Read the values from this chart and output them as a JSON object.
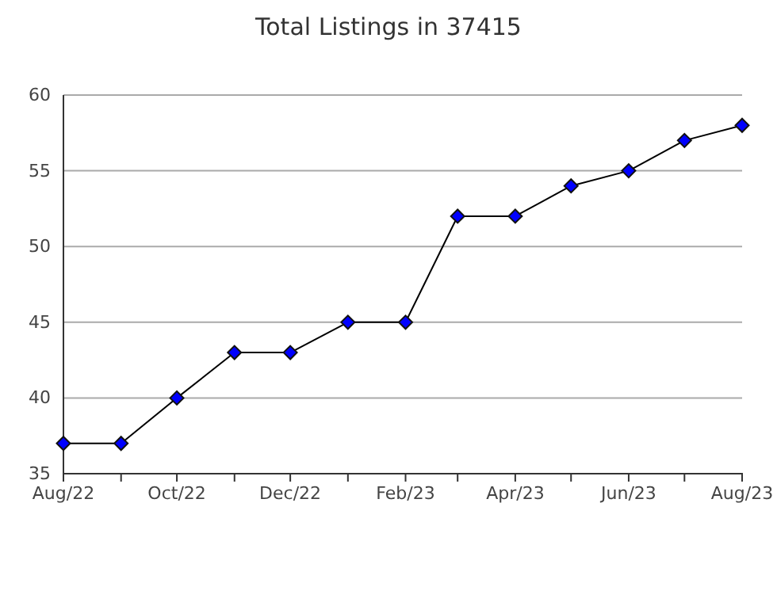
{
  "chart_data": {
    "type": "line",
    "title": "Total Listings in 37415",
    "x": [
      "2022-08",
      "2022-09",
      "2022-10",
      "2022-11",
      "2022-12",
      "2023-01",
      "2023-02",
      "2023-03",
      "2023-04",
      "2023-05",
      "2023-06",
      "2023-07",
      "2023-08"
    ],
    "series": [
      {
        "color": "#0000ff",
        "values": [
          37,
          37,
          40,
          43,
          43,
          45,
          45,
          52,
          52,
          54,
          55,
          57,
          58
        ]
      }
    ],
    "xlim": [
      "2022-08",
      "2023-08"
    ],
    "xticks": [
      {
        "value": "2022-08",
        "label": "Aug/22"
      },
      {
        "value": "2022-09",
        "label": null
      },
      {
        "value": "2022-10",
        "label": "Oct/22"
      },
      {
        "value": "2022-11",
        "label": null
      },
      {
        "value": "2022-12",
        "label": "Dec/22"
      },
      {
        "value": "2023-01",
        "label": null
      },
      {
        "value": "2023-02",
        "label": "Feb/23"
      },
      {
        "value": "2023-03",
        "label": null
      },
      {
        "value": "2023-04",
        "label": "Apr/23"
      },
      {
        "value": "2023-05",
        "label": null
      },
      {
        "value": "2023-06",
        "label": "Jun/23"
      },
      {
        "value": "2023-07",
        "label": null
      },
      {
        "value": "2023-08",
        "label": "Aug/23"
      }
    ],
    "ylim": [
      35,
      60
    ],
    "yticks": [
      35,
      40,
      45,
      50,
      55,
      60
    ],
    "grid": "y",
    "marker": "diamond",
    "line_style": "solid"
  }
}
